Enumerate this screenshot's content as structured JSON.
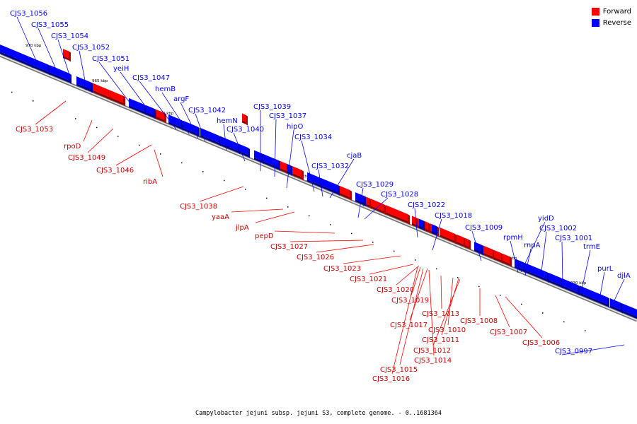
{
  "colors": {
    "forward": "#ff0000",
    "reverse": "#0000ff",
    "backbone": "#888888"
  },
  "legend": {
    "forward": "Forward",
    "reverse": "Reverse"
  },
  "caption": "Campylobacter jejuni subsp. jejuni S3, complete genome. - 0..1681364",
  "scale_labels": [
    "970 kbp",
    "965 kbp",
    "960 kbp",
    "955 kbp",
    "950 kbp",
    "945 kbp",
    "940 kbp",
    "935 kbp",
    "930 kbp"
  ],
  "reverse_genes": [
    "CJS3_1056",
    "CJS3_1055",
    "CJS3_1054",
    "CJS3_1052",
    "CJS3_1051",
    "yeiH",
    "CJS3_1047",
    "hemB",
    "argF",
    "CJS3_1042",
    "hemN",
    "CJS3_1040",
    "CJS3_1039",
    "CJS3_1037",
    "hipO",
    "CJS3_1034",
    "cjaB",
    "CJS3_1032",
    "CJS3_1029",
    "CJS3_1028",
    "CJS3_1022",
    "CJS3_1018",
    "CJS3_1009",
    "rpmH",
    "yidD",
    "rnpA",
    "CJS3_1002",
    "CJS3_1001",
    "trmE",
    "purL",
    "djlA",
    "CJS3_0997"
  ],
  "forward_genes": [
    "CJS3_1053",
    "rpoD",
    "CJS3_1049",
    "CJS3_1046",
    "ribA",
    "CJS3_1038",
    "yaaA",
    "jlpA",
    "pepD",
    "CJS3_1027",
    "CJS3_1026",
    "CJS3_1023",
    "CJS3_1021",
    "CJS3_1020",
    "CJS3_1019",
    "CJS3_1017",
    "CJS3_1013",
    "CJS3_1010",
    "CJS3_1011",
    "CJS3_1012",
    "CJS3_1014",
    "CJS3_1015",
    "CJS3_1016",
    "CJS3_1008",
    "CJS3_1007",
    "CJS3_1006"
  ]
}
